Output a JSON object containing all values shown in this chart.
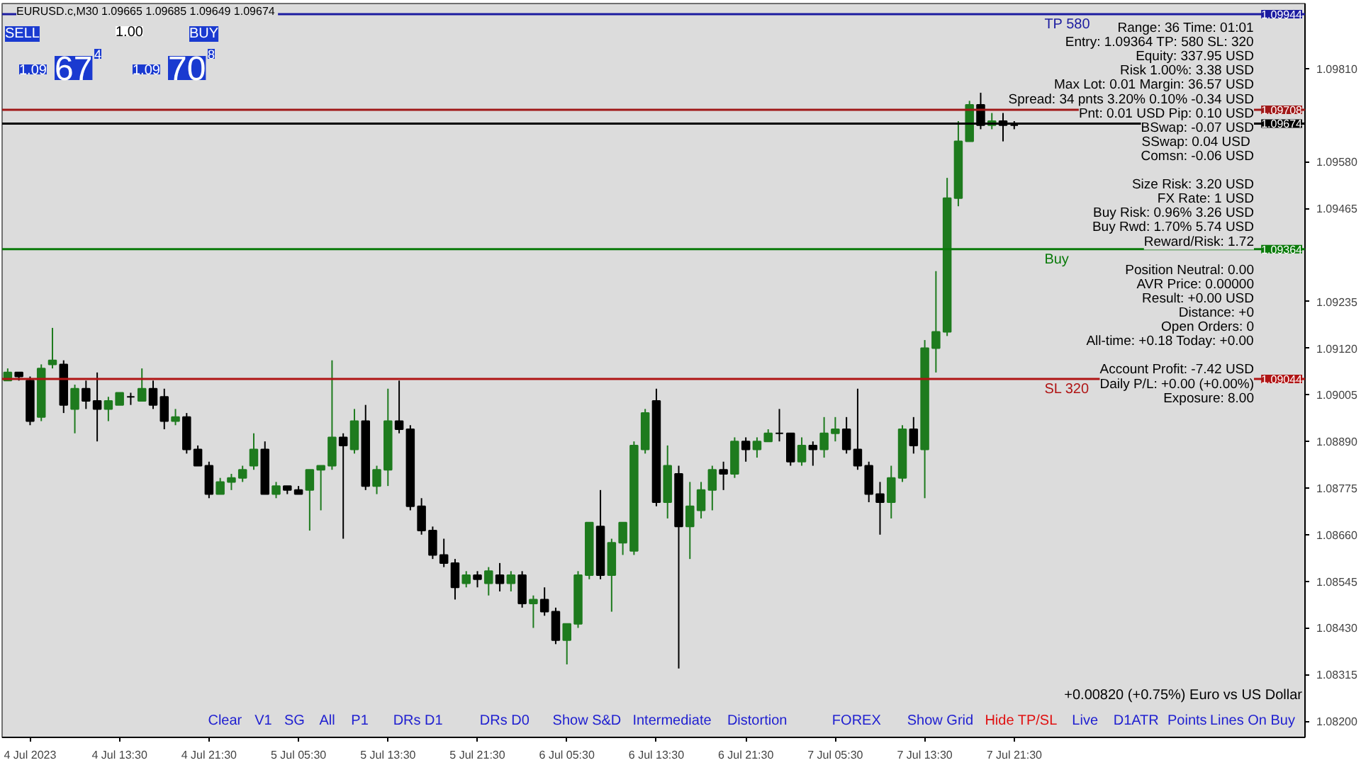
{
  "chart_data": {
    "type": "candlestick",
    "title": "EURUSD.c,M30  1.09665 1.09685 1.09649 1.09674",
    "x": [
      "2023-07-04T03:30",
      "2023-07-04T04:30",
      "2023-07-04T05:30",
      "2023-07-04T06:30",
      "2023-07-04T07:30",
      "2023-07-04T08:30",
      "2023-07-04T09:30",
      "2023-07-04T10:30",
      "2023-07-04T11:30",
      "2023-07-04T12:30",
      "2023-07-04T13:30",
      "2023-07-04T14:30",
      "2023-07-04T15:30",
      "2023-07-04T16:30",
      "2023-07-04T17:30",
      "2023-07-04T18:30",
      "2023-07-04T19:30",
      "2023-07-04T20:30",
      "2023-07-04T21:30",
      "2023-07-04T22:30",
      "2023-07-04T23:30",
      "2023-07-05T00:30",
      "2023-07-05T01:30",
      "2023-07-05T02:30",
      "2023-07-05T03:30",
      "2023-07-05T04:30",
      "2023-07-05T05:30",
      "2023-07-05T06:30",
      "2023-07-05T07:30",
      "2023-07-05T08:30",
      "2023-07-05T09:30",
      "2023-07-05T10:30",
      "2023-07-05T11:30",
      "2023-07-05T12:30",
      "2023-07-05T13:30",
      "2023-07-05T14:30",
      "2023-07-05T15:30",
      "2023-07-05T16:30",
      "2023-07-05T17:30",
      "2023-07-05T18:30",
      "2023-07-05T19:30",
      "2023-07-05T20:30",
      "2023-07-05T21:30",
      "2023-07-05T22:30",
      "2023-07-05T23:30",
      "2023-07-06T00:30",
      "2023-07-06T01:30",
      "2023-07-06T02:30",
      "2023-07-06T03:30",
      "2023-07-06T04:30",
      "2023-07-06T05:30",
      "2023-07-06T06:30",
      "2023-07-06T07:30",
      "2023-07-06T08:30",
      "2023-07-06T09:30",
      "2023-07-06T10:30",
      "2023-07-06T11:30",
      "2023-07-06T12:30",
      "2023-07-06T13:30",
      "2023-07-06T14:30",
      "2023-07-06T15:30",
      "2023-07-06T16:30",
      "2023-07-06T17:30",
      "2023-07-06T18:30",
      "2023-07-06T19:30",
      "2023-07-06T20:30",
      "2023-07-06T21:30",
      "2023-07-06T22:30",
      "2023-07-06T23:30",
      "2023-07-07T00:30",
      "2023-07-07T01:30",
      "2023-07-07T02:30",
      "2023-07-07T03:30",
      "2023-07-07T04:30",
      "2023-07-07T05:30",
      "2023-07-07T06:30",
      "2023-07-07T07:30",
      "2023-07-07T08:30",
      "2023-07-07T09:30",
      "2023-07-07T10:30",
      "2023-07-07T11:30",
      "2023-07-07T12:30",
      "2023-07-07T13:30",
      "2023-07-07T14:30",
      "2023-07-07T15:30",
      "2023-07-07T16:30",
      "2023-07-07T17:30",
      "2023-07-07T18:30",
      "2023-07-07T19:30",
      "2023-07-07T20:30",
      "2023-07-07T21:30"
    ],
    "ohlc": [
      [
        1.0904,
        1.0907,
        1.0904,
        1.0906
      ],
      [
        1.0906,
        1.0906,
        1.0904,
        1.0905
      ],
      [
        1.0904,
        1.0905,
        1.0893,
        1.0894
      ],
      [
        1.0895,
        1.0908,
        1.0894,
        1.0907
      ],
      [
        1.0908,
        1.0917,
        1.0907,
        1.0909
      ],
      [
        1.0908,
        1.0909,
        1.0896,
        1.0898
      ],
      [
        1.0897,
        1.0903,
        1.0891,
        1.0902
      ],
      [
        1.0902,
        1.0904,
        1.0897,
        1.0899
      ],
      [
        1.0899,
        1.0906,
        1.0889,
        1.0897
      ],
      [
        1.0897,
        1.09,
        1.0894,
        1.0899
      ],
      [
        1.0898,
        1.0901,
        1.0898,
        1.0901
      ],
      [
        1.09,
        1.0901,
        1.0898,
        1.09
      ],
      [
        1.0899,
        1.0907,
        1.0899,
        1.0902
      ],
      [
        1.0902,
        1.0904,
        1.0897,
        1.0898
      ],
      [
        1.09,
        1.0902,
        1.0892,
        1.0894
      ],
      [
        1.0894,
        1.0897,
        1.0893,
        1.0895
      ],
      [
        1.0895,
        1.0896,
        1.0886,
        1.0887
      ],
      [
        1.0887,
        1.0888,
        1.0883,
        1.0883
      ],
      [
        1.0883,
        1.0884,
        1.0875,
        1.0876
      ],
      [
        1.0876,
        1.088,
        1.0876,
        1.0879
      ],
      [
        1.0879,
        1.0881,
        1.0877,
        1.088
      ],
      [
        1.088,
        1.0883,
        1.0879,
        1.0882
      ],
      [
        1.0883,
        1.0891,
        1.0882,
        1.0887
      ],
      [
        1.0887,
        1.0889,
        1.0876,
        1.0876
      ],
      [
        1.0876,
        1.0879,
        1.0875,
        1.0878
      ],
      [
        1.0878,
        1.0878,
        1.0876,
        1.0877
      ],
      [
        1.0877,
        1.0878,
        1.0876,
        1.0876
      ],
      [
        1.0877,
        1.0882,
        1.0867,
        1.0882
      ],
      [
        1.0882,
        1.0883,
        1.0872,
        1.0883
      ],
      [
        1.0883,
        1.0909,
        1.0882,
        1.089
      ],
      [
        1.089,
        1.0891,
        1.0865,
        1.0888
      ],
      [
        1.0887,
        1.0897,
        1.0886,
        1.0894
      ],
      [
        1.0894,
        1.0898,
        1.0877,
        1.0878
      ],
      [
        1.0878,
        1.0883,
        1.0876,
        1.0882
      ],
      [
        1.0882,
        1.0902,
        1.0878,
        1.0894
      ],
      [
        1.0894,
        1.0904,
        1.0891,
        1.0892
      ],
      [
        1.0892,
        1.0893,
        1.0872,
        1.0873
      ],
      [
        1.0873,
        1.0875,
        1.0866,
        1.0867
      ],
      [
        1.0867,
        1.0868,
        1.086,
        1.0861
      ],
      [
        1.0861,
        1.0865,
        1.0858,
        1.0859
      ],
      [
        1.0859,
        1.086,
        1.085,
        1.0853
      ],
      [
        1.0854,
        1.0857,
        1.0853,
        1.0856
      ],
      [
        1.0856,
        1.0857,
        1.0853,
        1.0855
      ],
      [
        1.0854,
        1.0858,
        1.0851,
        1.0857
      ],
      [
        1.0856,
        1.0859,
        1.0852,
        1.0854
      ],
      [
        1.0854,
        1.0857,
        1.0852,
        1.0856
      ],
      [
        1.0856,
        1.0857,
        1.0848,
        1.0849
      ],
      [
        1.0849,
        1.0851,
        1.0843,
        1.085
      ],
      [
        1.085,
        1.0853,
        1.0846,
        1.0847
      ],
      [
        1.0847,
        1.0848,
        1.0839,
        1.084
      ],
      [
        1.084,
        1.0844,
        1.0834,
        1.0844
      ],
      [
        1.0844,
        1.0857,
        1.0843,
        1.0856
      ],
      [
        1.0856,
        1.0869,
        1.0855,
        1.0869
      ],
      [
        1.0868,
        1.0877,
        1.0855,
        1.0856
      ],
      [
        1.0856,
        1.0865,
        1.0847,
        1.0864
      ],
      [
        1.0864,
        1.0869,
        1.0861,
        1.0869
      ],
      [
        1.0862,
        1.0889,
        1.0861,
        1.0888
      ],
      [
        1.0887,
        1.0897,
        1.0886,
        1.0896
      ],
      [
        1.0899,
        1.0902,
        1.0873,
        1.0874
      ],
      [
        1.0874,
        1.0888,
        1.087,
        1.0883
      ],
      [
        1.0881,
        1.0883,
        1.0833,
        1.0868
      ],
      [
        1.0868,
        1.0879,
        1.086,
        1.0873
      ],
      [
        1.0872,
        1.0879,
        1.087,
        1.0877
      ],
      [
        1.0877,
        1.0883,
        1.0872,
        1.0882
      ],
      [
        1.0882,
        1.0884,
        1.0877,
        1.0881
      ],
      [
        1.0881,
        1.089,
        1.088,
        1.0889
      ],
      [
        1.0889,
        1.089,
        1.0884,
        1.0887
      ],
      [
        1.0887,
        1.089,
        1.0885,
        1.0889
      ],
      [
        1.0889,
        1.0892,
        1.0889,
        1.0891
      ],
      [
        1.0891,
        1.0897,
        1.0889,
        1.0891
      ],
      [
        1.0891,
        1.0891,
        1.0883,
        1.0884
      ],
      [
        1.0884,
        1.089,
        1.0883,
        1.0888
      ],
      [
        1.0888,
        1.0889,
        1.0883,
        1.0887
      ],
      [
        1.0887,
        1.0895,
        1.0885,
        1.0891
      ],
      [
        1.0891,
        1.0895,
        1.0889,
        1.0892
      ],
      [
        1.0892,
        1.0895,
        1.0886,
        1.0887
      ],
      [
        1.0887,
        1.0902,
        1.0882,
        1.0883
      ],
      [
        1.0883,
        1.0884,
        1.0874,
        1.0876
      ],
      [
        1.0876,
        1.0879,
        1.0866,
        1.0874
      ],
      [
        1.0874,
        1.0883,
        1.087,
        1.088
      ],
      [
        1.088,
        1.0893,
        1.0879,
        1.0892
      ],
      [
        1.0892,
        1.0895,
        1.0886,
        1.0888
      ],
      [
        1.0887,
        1.0914,
        1.0875,
        1.0912
      ],
      [
        1.0912,
        1.0931,
        1.0906,
        1.0916
      ],
      [
        1.0916,
        1.0954,
        1.0915,
        1.0949
      ],
      [
        1.0949,
        1.0968,
        1.0947,
        1.0963
      ],
      [
        1.0963,
        1.0973,
        1.0963,
        1.0972
      ],
      [
        1.0972,
        1.0975,
        1.0966,
        1.0967
      ],
      [
        1.0967,
        1.097,
        1.0966,
        1.0968
      ],
      [
        1.0968,
        1.097,
        1.0963,
        1.0967
      ],
      [
        1.0967,
        1.0968,
        1.0966,
        1.0967
      ]
    ],
    "colors": [
      "#1e7b1e",
      "#000000",
      "#000000",
      "#1e7b1e",
      "#1e7b1e",
      "#000000",
      "#1e7b1e",
      "#000000",
      "#000000",
      "#1e7b1e",
      "#1e7b1e",
      "#000000",
      "#1e7b1e",
      "#000000",
      "#000000",
      "#1e7b1e",
      "#000000",
      "#000000",
      "#000000",
      "#1e7b1e",
      "#1e7b1e",
      "#1e7b1e",
      "#1e7b1e",
      "#000000",
      "#1e7b1e",
      "#000000",
      "#000000",
      "#1e7b1e",
      "#1e7b1e",
      "#1e7b1e",
      "#000000",
      "#1e7b1e",
      "#000000",
      "#1e7b1e",
      "#1e7b1e",
      "#000000",
      "#000000",
      "#000000",
      "#000000",
      "#000000",
      "#000000",
      "#1e7b1e",
      "#000000",
      "#1e7b1e",
      "#000000",
      "#1e7b1e",
      "#000000",
      "#1e7b1e",
      "#000000",
      "#000000",
      "#1e7b1e",
      "#1e7b1e",
      "#1e7b1e",
      "#000000",
      "#1e7b1e",
      "#1e7b1e",
      "#1e7b1e",
      "#1e7b1e",
      "#000000",
      "#1e7b1e",
      "#000000",
      "#1e7b1e",
      "#1e7b1e",
      "#1e7b1e",
      "#000000",
      "#1e7b1e",
      "#000000",
      "#1e7b1e",
      "#1e7b1e",
      "#000000",
      "#000000",
      "#1e7b1e",
      "#000000",
      "#1e7b1e",
      "#1e7b1e",
      "#000000",
      "#000000",
      "#000000",
      "#000000",
      "#1e7b1e",
      "#1e7b1e",
      "#000000",
      "#1e7b1e",
      "#1e7b1e",
      "#1e7b1e",
      "#1e7b1e",
      "#1e7b1e",
      "#000000",
      "#1e7b1e",
      "#000000",
      "#000000"
    ],
    "xlim": [
      "2023-07-04T03:00",
      "2023-07-08T23:30"
    ],
    "xticks": [
      {
        "value": "2023-07-04T05:30",
        "label": "4 Jul 2023"
      },
      {
        "value": "2023-07-04T13:30",
        "label": "4 Jul 13:30"
      },
      {
        "value": "2023-07-04T21:30",
        "label": "4 Jul 21:30"
      },
      {
        "value": "2023-07-05T05:30",
        "label": "5 Jul 05:30"
      },
      {
        "value": "2023-07-05T13:30",
        "label": "5 Jul 13:30"
      },
      {
        "value": "2023-07-05T21:30",
        "label": "5 Jul 21:30"
      },
      {
        "value": "2023-07-06T05:30",
        "label": "6 Jul 05:30"
      },
      {
        "value": "2023-07-06T13:30",
        "label": "6 Jul 13:30"
      },
      {
        "value": "2023-07-06T21:30",
        "label": "6 Jul 21:30"
      },
      {
        "value": "2023-07-07T05:30",
        "label": "7 Jul 05:30"
      },
      {
        "value": "2023-07-07T13:30",
        "label": "7 Jul 13:30"
      },
      {
        "value": "2023-07-07T21:30",
        "label": "7 Jul 21:30"
      }
    ],
    "ylim": [
      1.0816,
      1.0997
    ],
    "yticks": [
      {
        "value": 1.0981,
        "label": "1.09810"
      },
      {
        "value": 1.0958,
        "label": "1.09580"
      },
      {
        "value": 1.09465,
        "label": "1.09465"
      },
      {
        "value": 1.09235,
        "label": "1.09235"
      },
      {
        "value": 1.0912,
        "label": "1.09120"
      },
      {
        "value": 1.09005,
        "label": "1.09005"
      },
      {
        "value": 1.0889,
        "label": "1.08890"
      },
      {
        "value": 1.08775,
        "label": "1.08775"
      },
      {
        "value": 1.0866,
        "label": "1.08660"
      },
      {
        "value": 1.08545,
        "label": "1.08545"
      },
      {
        "value": 1.0843,
        "label": "1.08430"
      },
      {
        "value": 1.08315,
        "label": "1.08315"
      },
      {
        "value": 1.082,
        "label": "1.08200"
      }
    ],
    "ref_lines": [
      {
        "axis": "y",
        "value": 1.09944,
        "label": "TP 580",
        "color": "#1c1ca0",
        "line_style": "solid"
      },
      {
        "axis": "y",
        "value": 1.09708,
        "label": null,
        "color": "#a01818",
        "line_style": "solid"
      },
      {
        "axis": "y",
        "value": 1.09674,
        "label": null,
        "color": "#000000",
        "line_style": "solid"
      },
      {
        "axis": "y",
        "value": 1.09364,
        "label": "Buy",
        "color": "#0a7a0a",
        "line_style": "solid"
      },
      {
        "axis": "y",
        "value": 1.09044,
        "label": "SL 320",
        "color": "#b01414",
        "line_style": "solid"
      }
    ],
    "annotations": [
      {
        "text": "1.09944",
        "x": "2023-07-08T23:30",
        "y": 1.09944
      },
      {
        "text": "1.09708",
        "x": "2023-07-08T23:30",
        "y": 1.09708
      },
      {
        "text": "1.09674",
        "x": "2023-07-08T23:30",
        "y": 1.09674
      },
      {
        "text": "1.09364",
        "x": "2023-07-08T23:30",
        "y": 1.09364
      },
      {
        "text": "1.09044",
        "x": "2023-07-08T23:30",
        "y": 1.09044
      },
      "SELL",
      "1.00",
      "BUY",
      "1.09",
      "67",
      "4",
      "1.09",
      "70",
      "8",
      "Range: 36 Time: 01:01",
      "Entry: 1.09364 TP: 580 SL: 320",
      "Equity: 337.95 USD",
      "Risk 1.00%: 3.38 USD",
      "Max Lot: 0.01 Margin: 36.57 USD",
      "Spread: 34 pnts 3.20% 0.10% -0.34 USD",
      "Pnt: 0.01 USD Pip: 0.10 USD",
      "BSwap: -0.07 USD",
      "SSwap:  0.04 USD",
      "Comsn: -0.06 USD",
      "Size Risk: 3.20 USD",
      "FX Rate: 1 USD",
      "Buy Risk: 0.96% 3.26 USD",
      "Buy Rwd: 1.70% 5.74 USD",
      "Reward/Risk: 1.72",
      "Position Neutral: 0.00",
      "AVR Price: 0.00000",
      "Result: +0.00 USD",
      "Distance: +0",
      "Open Orders: 0",
      "All-time: +0.18 Today: +0.00",
      "Account Profit: -7.42 USD",
      "Daily P/L: +0.00 (+0.00%)",
      "Exposure: 8.00",
      "+0.00820 (+0.75%) Euro vs US Dollar",
      "Clear",
      "V1",
      "SG",
      "All",
      "P1",
      "DRs D1",
      "DRs D0",
      "Show S&D",
      "Intermediate",
      "Distortion",
      "FOREX",
      "Show Grid",
      "Hide TP/SL",
      "Live",
      "D1ATR",
      "Points",
      "Lines On Buy"
    ]
  }
}
